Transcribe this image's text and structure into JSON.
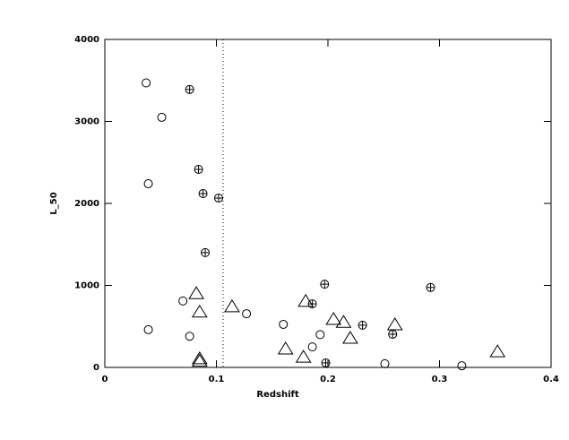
{
  "chart_data": {
    "type": "scatter",
    "x_label": "Redshift",
    "y_label": "L_50",
    "xlim": [
      0,
      0.4
    ],
    "xticks": [
      0,
      0.1,
      0.2,
      0.3,
      0.4
    ],
    "ylim": [
      0,
      4000
    ],
    "yticks": [
      0,
      1000,
      2000,
      3000,
      4000
    ],
    "vline": 0.106,
    "vline_style": "dotted",
    "color": "#000000",
    "series": [
      {
        "marker": "circle",
        "x": [
          0.037,
          0.051,
          0.039,
          0.07,
          0.039,
          0.076,
          0.127,
          0.16,
          0.186,
          0.193,
          0.251,
          0.32
        ],
        "values": [
          3470,
          3050,
          2240,
          810,
          460,
          380,
          655,
          525,
          250,
          400,
          45,
          20
        ]
      },
      {
        "marker": "circle-plus",
        "x": [
          0.076,
          0.084,
          0.088,
          0.102,
          0.09,
          0.197,
          0.186,
          0.231,
          0.258,
          0.292,
          0.198
        ],
        "values": [
          3390,
          2415,
          2120,
          2065,
          1400,
          1015,
          775,
          515,
          405,
          975,
          55
        ]
      },
      {
        "marker": "triangle",
        "x": [
          0.082,
          0.085,
          0.114,
          0.085,
          0.085,
          0.162,
          0.178,
          0.18,
          0.205,
          0.214,
          0.22,
          0.26,
          0.352
        ],
        "values": [
          905,
          680,
          745,
          110,
          80,
          230,
          130,
          810,
          590,
          555,
          360,
          525,
          195
        ]
      }
    ]
  }
}
